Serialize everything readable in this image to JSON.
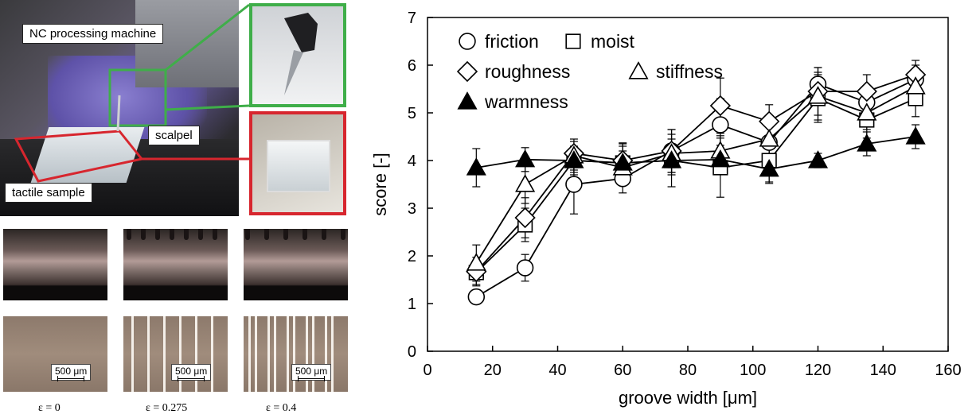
{
  "photo": {
    "machine_label": "NC processing machine",
    "scalpel_label": "scalpel",
    "sample_label": "tactile sample",
    "frame_colors": {
      "scalpel": "#3fae49",
      "sample": "#d7262e"
    }
  },
  "micrographs": [
    {
      "epsilon": "ε = 0",
      "scale": "500 μm"
    },
    {
      "epsilon": "ε = 0.275",
      "scale": "500 μm"
    },
    {
      "epsilon": "ε = 0.4",
      "scale": "500 μm"
    }
  ],
  "chart_data": {
    "type": "line",
    "xlabel": "groove width [μm]",
    "ylabel": "score  [-]",
    "xlim": [
      0,
      160
    ],
    "ylim": [
      0,
      7
    ],
    "xticks": [
      0,
      20,
      40,
      60,
      80,
      100,
      120,
      140,
      160
    ],
    "yticks": [
      0,
      1,
      2,
      3,
      4,
      5,
      6,
      7
    ],
    "grid": false,
    "legend_position": "top-left",
    "x": [
      15,
      30,
      45,
      60,
      75,
      90,
      105,
      120,
      135,
      150
    ],
    "series": [
      {
        "name": "friction",
        "marker": "circle-open",
        "values": [
          1.14,
          1.75,
          3.5,
          3.62,
          4.2,
          4.75,
          4.38,
          5.6,
          5.22,
          5.7
        ],
        "errors": [
          0.15,
          0.28,
          0.62,
          0.3,
          0.45,
          0.55,
          0.35,
          0.35,
          0.3,
          0.3
        ]
      },
      {
        "name": "moist",
        "marker": "square-open",
        "values": [
          1.65,
          2.65,
          4.0,
          3.95,
          4.0,
          3.85,
          4.0,
          5.3,
          4.85,
          5.3
        ],
        "errors": [
          0.25,
          0.35,
          0.3,
          0.35,
          0.55,
          0.62,
          0.45,
          0.5,
          0.38,
          0.38
        ]
      },
      {
        "name": "roughness",
        "marker": "diamond-open",
        "values": [
          1.67,
          2.8,
          4.15,
          4.0,
          4.2,
          5.15,
          4.82,
          5.45,
          5.45,
          5.8
        ],
        "errors": [
          0.3,
          0.42,
          0.3,
          0.35,
          0.45,
          0.58,
          0.35,
          0.5,
          0.35,
          0.3
        ]
      },
      {
        "name": "stiffness",
        "marker": "triangle-open",
        "values": [
          1.85,
          3.5,
          4.1,
          3.85,
          4.15,
          4.2,
          4.45,
          5.35,
          5.0,
          5.55
        ],
        "errors": [
          0.38,
          0.4,
          0.3,
          0.35,
          0.3,
          0.32,
          0.35,
          0.5,
          0.35,
          0.35
        ]
      },
      {
        "name": "warmness",
        "marker": "triangle-filled",
        "values": [
          3.85,
          4.02,
          4.0,
          3.95,
          4.0,
          4.02,
          3.82,
          4.0,
          4.35,
          4.5
        ],
        "errors": [
          0.4,
          0.25,
          0.25,
          0.42,
          0.3,
          0.3,
          0.3,
          0.15,
          0.25,
          0.25
        ]
      }
    ]
  }
}
